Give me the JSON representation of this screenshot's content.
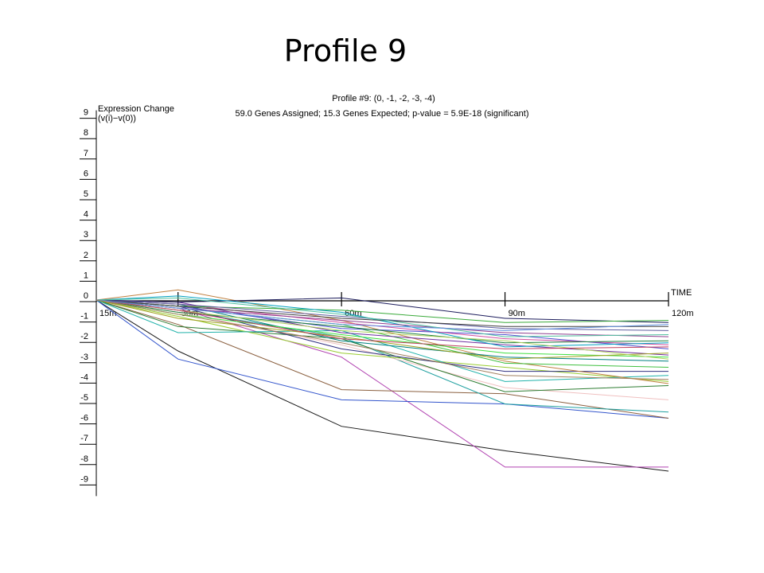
{
  "slide": {
    "title": "Profile 9"
  },
  "chart_data": {
    "type": "line",
    "title": "Profile #9: (0, -1, -2, -3, -4)",
    "subtitle": "59.0 Genes Assigned; 15.3 Genes Expected; p-value = 5.9E-18 (significant)",
    "ylabel_line1": "Expression Change",
    "ylabel_line2": "(v(i)−v(0))",
    "xlabel": "TIME",
    "categories": [
      "15m",
      "30m",
      "60m",
      "90m",
      "120m"
    ],
    "x": [
      15,
      30,
      60,
      90,
      120
    ],
    "xlim": [
      15,
      120
    ],
    "ylim": [
      -9,
      9
    ],
    "yticks": [
      "9",
      "8",
      "7",
      "6",
      "5",
      "4",
      "3",
      "2",
      "1",
      "0",
      "-1",
      "-2",
      "-3",
      "-4",
      "-5",
      "-6",
      "-7",
      "-8",
      "-9"
    ],
    "grid": false,
    "legend": "none",
    "series": [
      {
        "color": "#1a1a1a",
        "values": [
          0,
          -2.5,
          -6.2,
          -7.4,
          -8.4
        ]
      },
      {
        "color": "#b040b0",
        "values": [
          0,
          -0.4,
          -2.8,
          -8.2,
          -8.2
        ]
      },
      {
        "color": "#3355cc",
        "values": [
          0,
          -2.9,
          -4.9,
          -5.1,
          -5.8
        ]
      },
      {
        "color": "#8b6040",
        "values": [
          0,
          -1.2,
          -4.4,
          -4.6,
          -5.8
        ]
      },
      {
        "color": "#20a0a0",
        "values": [
          0,
          -0.5,
          -1.8,
          -5.1,
          -5.5
        ]
      },
      {
        "color": "#f0c0c0",
        "values": [
          0,
          -0.6,
          -2.2,
          -4.3,
          -4.9
        ]
      },
      {
        "color": "#2e7d32",
        "values": [
          0,
          -1.3,
          -1.9,
          -4.5,
          -4.2
        ]
      },
      {
        "color": "#9acd32",
        "values": [
          0,
          -0.8,
          -2.6,
          -3.3,
          -4.0
        ]
      },
      {
        "color": "#20b2aa",
        "values": [
          0,
          -1.6,
          -1.5,
          -4.0,
          -3.7
        ]
      },
      {
        "color": "#303080",
        "values": [
          0,
          -0.3,
          -2.4,
          -3.5,
          -3.5
        ]
      },
      {
        "color": "#c08040",
        "values": [
          0,
          0.5,
          -1.0,
          -3.0,
          -4.1
        ]
      },
      {
        "color": "#40c040",
        "values": [
          0,
          -0.4,
          -1.2,
          -3.1,
          -3.3
        ]
      },
      {
        "color": "#008080",
        "values": [
          0,
          -0.2,
          -2.0,
          -2.8,
          -3.0
        ]
      },
      {
        "color": "#7030a0",
        "values": [
          0,
          -0.1,
          -1.6,
          -2.2,
          -2.7
        ]
      },
      {
        "color": "#40e040",
        "values": [
          0,
          -0.7,
          -1.7,
          -2.6,
          -2.8
        ]
      },
      {
        "color": "#5050d0",
        "values": [
          0,
          -0.3,
          -1.4,
          -1.7,
          -2.4
        ]
      },
      {
        "color": "#a0a020",
        "values": [
          0,
          -0.9,
          -1.8,
          -2.9,
          -2.6
        ]
      },
      {
        "color": "#d050a0",
        "values": [
          0,
          -0.2,
          -1.1,
          -1.9,
          -2.2
        ]
      },
      {
        "color": "#208040",
        "values": [
          0,
          -0.6,
          -1.3,
          -2.1,
          -2.0
        ]
      },
      {
        "color": "#1c1c5c",
        "values": [
          0,
          -0.1,
          0.1,
          -0.9,
          -1.1
        ]
      },
      {
        "color": "#3aaa3a",
        "values": [
          0,
          -0.3,
          -0.5,
          -1.1,
          -1.0
        ]
      },
      {
        "color": "#6060a0",
        "values": [
          0,
          -0.2,
          -0.8,
          -1.4,
          -1.5
        ]
      },
      {
        "color": "#00a0c0",
        "values": [
          0,
          0.2,
          -0.6,
          -2.3,
          -2.1
        ]
      },
      {
        "color": "#904090",
        "values": [
          0,
          -0.4,
          -1.0,
          -1.6,
          -1.8
        ]
      },
      {
        "color": "#b0d060",
        "values": [
          0,
          -0.5,
          -1.5,
          -2.0,
          -2.9
        ]
      },
      {
        "color": "#404040",
        "values": [
          0,
          -0.3,
          -0.9,
          -1.3,
          -1.3
        ]
      },
      {
        "color": "#50c0a0",
        "values": [
          0,
          0.1,
          -0.7,
          -1.8,
          -1.7
        ]
      },
      {
        "color": "#c04060",
        "values": [
          0,
          -0.5,
          -1.9,
          -2.4,
          -2.3
        ]
      },
      {
        "color": "#6090e0",
        "values": [
          0,
          -0.4,
          -1.2,
          -1.5,
          -1.2
        ]
      },
      {
        "color": "#a08060",
        "values": [
          0,
          -0.7,
          -2.1,
          -3.7,
          -3.9
        ]
      }
    ]
  }
}
